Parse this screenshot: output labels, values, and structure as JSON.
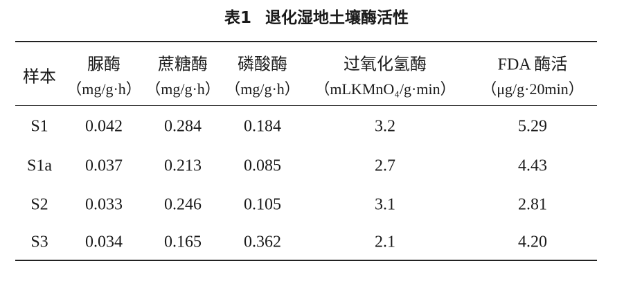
{
  "title": {
    "label": "表1",
    "text": "退化湿地土壤酶活性"
  },
  "table": {
    "header": {
      "sample": "样本",
      "columns": [
        {
          "name": "脲酶",
          "unit": "（mg/g·h）"
        },
        {
          "name": "蔗糖酶",
          "unit": "（mg/g·h）"
        },
        {
          "name": "磷酸酶",
          "unit": "（mg/g·h）"
        },
        {
          "name": "过氧化氢酶",
          "unit": "（mLKMnO₄/g·min）"
        },
        {
          "name": "FDA 酶活",
          "unit": "（μg/g·20min）"
        }
      ]
    },
    "rows": [
      [
        "S1",
        "0.042",
        "0.284",
        "0.184",
        "3.2",
        "5.29"
      ],
      [
        "S1a",
        "0.037",
        "0.213",
        "0.085",
        "2.7",
        "4.43"
      ],
      [
        "S2",
        "0.033",
        "0.246",
        "0.105",
        "3.1",
        "2.81"
      ],
      [
        "S3",
        "0.034",
        "0.165",
        "0.362",
        "2.1",
        "4.20"
      ]
    ]
  }
}
